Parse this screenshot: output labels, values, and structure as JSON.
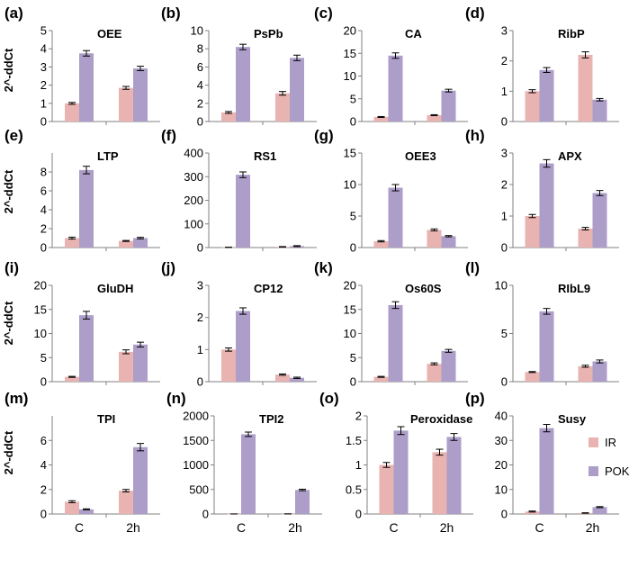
{
  "colors": {
    "IR": "#e8b3b0",
    "POK": "#ad9dc9",
    "axis": "#808080",
    "errorbar": "#000000"
  },
  "legend": [
    {
      "key": "IR",
      "label": "IR"
    },
    {
      "key": "POK",
      "label": "POK"
    }
  ],
  "y_axis_label": "2^-ddCt",
  "chart_data": [
    {
      "id": "a",
      "letter": "(a)",
      "title": "OEE",
      "type": "bar",
      "categories": [
        "C",
        "2h"
      ],
      "ylim": [
        0,
        5
      ],
      "yticks": [
        0,
        1,
        2,
        3,
        4,
        5
      ],
      "series": [
        {
          "name": "IR",
          "values": [
            1.0,
            1.85
          ],
          "errors": [
            0.05,
            0.08
          ]
        },
        {
          "name": "POK",
          "values": [
            3.75,
            2.92
          ],
          "errors": [
            0.15,
            0.12
          ]
        }
      ]
    },
    {
      "id": "b",
      "letter": "(b)",
      "title": "PsPb",
      "type": "bar",
      "categories": [
        "C",
        "2h"
      ],
      "ylim": [
        0,
        10
      ],
      "yticks": [
        0,
        2,
        4,
        6,
        8,
        10
      ],
      "series": [
        {
          "name": "IR",
          "values": [
            1.0,
            3.1
          ],
          "errors": [
            0.1,
            0.2
          ]
        },
        {
          "name": "POK",
          "values": [
            8.2,
            7.0
          ],
          "errors": [
            0.3,
            0.3
          ]
        }
      ]
    },
    {
      "id": "c",
      "letter": "(c)",
      "title": "CA",
      "type": "bar",
      "categories": [
        "C",
        "2h"
      ],
      "ylim": [
        0,
        20
      ],
      "yticks": [
        0,
        5,
        10,
        15,
        20
      ],
      "series": [
        {
          "name": "IR",
          "values": [
            1.0,
            1.4
          ],
          "errors": [
            0.1,
            0.1
          ]
        },
        {
          "name": "POK",
          "values": [
            14.5,
            6.8
          ],
          "errors": [
            0.6,
            0.3
          ]
        }
      ]
    },
    {
      "id": "d",
      "letter": "(d)",
      "title": "RibP",
      "type": "bar",
      "categories": [
        "C",
        "2h"
      ],
      "ylim": [
        0,
        3
      ],
      "yticks": [
        0,
        1,
        2,
        3
      ],
      "series": [
        {
          "name": "IR",
          "values": [
            1.0,
            2.2
          ],
          "errors": [
            0.05,
            0.1
          ]
        },
        {
          "name": "POK",
          "values": [
            1.7,
            0.72
          ],
          "errors": [
            0.08,
            0.04
          ]
        }
      ]
    },
    {
      "id": "e",
      "letter": "(e)",
      "title": "LTP",
      "type": "bar",
      "categories": [
        "C",
        "2h"
      ],
      "ylim": [
        0,
        10
      ],
      "yticks": [
        0,
        2,
        4,
        6,
        8
      ],
      "series": [
        {
          "name": "IR",
          "values": [
            1.0,
            0.7
          ],
          "errors": [
            0.1,
            0.05
          ]
        },
        {
          "name": "POK",
          "values": [
            8.2,
            1.0
          ],
          "errors": [
            0.4,
            0.08
          ]
        }
      ]
    },
    {
      "id": "f",
      "letter": "(f)",
      "title": "RS1",
      "type": "bar",
      "categories": [
        "C",
        "2h"
      ],
      "ylim": [
        0,
        400
      ],
      "yticks": [
        0,
        100,
        200,
        300,
        400
      ],
      "series": [
        {
          "name": "IR",
          "values": [
            1,
            3
          ],
          "errors": [
            0.5,
            1
          ]
        },
        {
          "name": "POK",
          "values": [
            308,
            6
          ],
          "errors": [
            12,
            2
          ]
        }
      ]
    },
    {
      "id": "g",
      "letter": "(g)",
      "title": "OEE3",
      "type": "bar",
      "categories": [
        "C",
        "2h"
      ],
      "ylim": [
        0,
        15
      ],
      "yticks": [
        0,
        5,
        10,
        15
      ],
      "series": [
        {
          "name": "IR",
          "values": [
            1.0,
            2.8
          ],
          "errors": [
            0.1,
            0.15
          ]
        },
        {
          "name": "POK",
          "values": [
            9.5,
            1.8
          ],
          "errors": [
            0.5,
            0.1
          ]
        }
      ]
    },
    {
      "id": "h",
      "letter": "(h)",
      "title": "APX",
      "type": "bar",
      "categories": [
        "C",
        "2h"
      ],
      "ylim": [
        0,
        3
      ],
      "yticks": [
        0,
        1,
        2,
        3
      ],
      "series": [
        {
          "name": "IR",
          "values": [
            1.0,
            0.6
          ],
          "errors": [
            0.05,
            0.04
          ]
        },
        {
          "name": "POK",
          "values": [
            2.67,
            1.73
          ],
          "errors": [
            0.12,
            0.08
          ]
        }
      ]
    },
    {
      "id": "i",
      "letter": "(i)",
      "title": "GluDH",
      "type": "bar",
      "categories": [
        "C",
        "2h"
      ],
      "ylim": [
        0,
        20
      ],
      "yticks": [
        0,
        5,
        10,
        15,
        20
      ],
      "series": [
        {
          "name": "IR",
          "values": [
            1.0,
            6.2
          ],
          "errors": [
            0.1,
            0.4
          ]
        },
        {
          "name": "POK",
          "values": [
            13.8,
            7.7
          ],
          "errors": [
            0.8,
            0.5
          ]
        }
      ]
    },
    {
      "id": "j",
      "letter": "(j)",
      "title": "CP12",
      "type": "bar",
      "categories": [
        "C",
        "2h"
      ],
      "ylim": [
        0,
        3
      ],
      "yticks": [
        0,
        1,
        2,
        3
      ],
      "series": [
        {
          "name": "IR",
          "values": [
            1.0,
            0.22
          ],
          "errors": [
            0.05,
            0.02
          ]
        },
        {
          "name": "POK",
          "values": [
            2.2,
            0.12
          ],
          "errors": [
            0.1,
            0.02
          ]
        }
      ]
    },
    {
      "id": "k",
      "letter": "(k)",
      "title": "Os60S",
      "type": "bar",
      "categories": [
        "C",
        "2h"
      ],
      "ylim": [
        0,
        20
      ],
      "yticks": [
        0,
        5,
        10,
        15,
        20
      ],
      "series": [
        {
          "name": "IR",
          "values": [
            1.0,
            3.7
          ],
          "errors": [
            0.1,
            0.2
          ]
        },
        {
          "name": "POK",
          "values": [
            15.9,
            6.4
          ],
          "errors": [
            0.7,
            0.3
          ]
        }
      ]
    },
    {
      "id": "l",
      "letter": "(l)",
      "title": "RIbL9",
      "type": "bar",
      "categories": [
        "C",
        "2h"
      ],
      "ylim": [
        0,
        10
      ],
      "yticks": [
        0,
        5,
        10
      ],
      "series": [
        {
          "name": "IR",
          "values": [
            1.0,
            1.6
          ],
          "errors": [
            0.05,
            0.1
          ]
        },
        {
          "name": "POK",
          "values": [
            7.3,
            2.1
          ],
          "errors": [
            0.3,
            0.15
          ]
        }
      ]
    },
    {
      "id": "m",
      "letter": "(m)",
      "title": "TPI",
      "type": "bar",
      "categories": [
        "C",
        "2h"
      ],
      "ylim": [
        0,
        8
      ],
      "yticks": [
        0,
        2,
        4,
        6
      ],
      "series": [
        {
          "name": "IR",
          "values": [
            1.0,
            1.9
          ],
          "errors": [
            0.08,
            0.1
          ]
        },
        {
          "name": "POK",
          "values": [
            0.38,
            5.45
          ],
          "errors": [
            0.04,
            0.3
          ]
        }
      ]
    },
    {
      "id": "n",
      "letter": "(n)",
      "title": "TPI2",
      "type": "bar",
      "categories": [
        "C",
        "2h"
      ],
      "ylim": [
        0,
        2000
      ],
      "yticks": [
        0,
        500,
        1000,
        1500,
        2000
      ],
      "series": [
        {
          "name": "IR",
          "values": [
            1,
            2
          ],
          "errors": [
            0.5,
            0.5
          ]
        },
        {
          "name": "POK",
          "values": [
            1625,
            490
          ],
          "errors": [
            45,
            15
          ]
        }
      ]
    },
    {
      "id": "o",
      "letter": "(o)",
      "title": "Peroxidase",
      "type": "bar",
      "categories": [
        "C",
        "2h"
      ],
      "ylim": [
        0,
        2
      ],
      "yticks": [
        0,
        0.5,
        1,
        1.5,
        2
      ],
      "series": [
        {
          "name": "IR",
          "values": [
            1.0,
            1.26
          ],
          "errors": [
            0.05,
            0.06
          ]
        },
        {
          "name": "POK",
          "values": [
            1.7,
            1.57
          ],
          "errors": [
            0.08,
            0.07
          ]
        }
      ]
    },
    {
      "id": "p",
      "letter": "(p)",
      "title": "Susy",
      "type": "bar",
      "categories": [
        "C",
        "2h"
      ],
      "ylim": [
        0,
        40
      ],
      "yticks": [
        0,
        10,
        20,
        30,
        40
      ],
      "series": [
        {
          "name": "IR",
          "values": [
            1.0,
            0.4
          ],
          "errors": [
            0.2,
            0.1
          ]
        },
        {
          "name": "POK",
          "values": [
            35,
            2.8
          ],
          "errors": [
            1.5,
            0.2
          ]
        }
      ]
    }
  ]
}
